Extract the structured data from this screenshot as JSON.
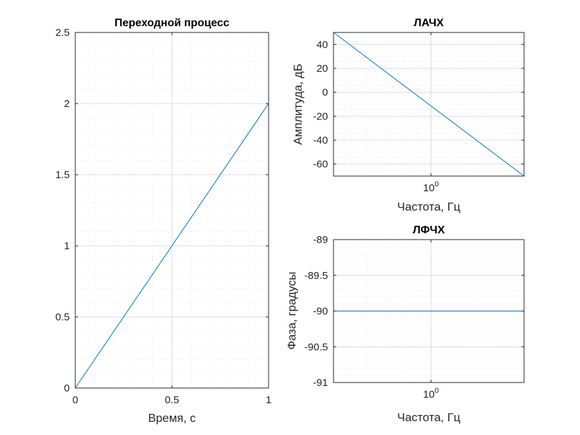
{
  "chart_data": [
    {
      "id": "step",
      "type": "line",
      "title": "Переходной процесс",
      "xlabel": "Время, с",
      "ylabel": "",
      "xlim": [
        0,
        1
      ],
      "ylim": [
        0,
        2.5
      ],
      "xscale": "linear",
      "xticks": [
        0,
        0.5,
        1
      ],
      "xtick_labels": [
        "0",
        "0.5",
        "1"
      ],
      "yticks": [
        0,
        0.5,
        1,
        1.5,
        2,
        2.5
      ],
      "ytick_labels": [
        "0",
        "0.5",
        "1",
        "1.5",
        "2",
        "2.5"
      ],
      "grid": true,
      "minor_grid": true,
      "series": [
        {
          "x": [
            0,
            1
          ],
          "y": [
            0,
            2
          ],
          "color": "#0072bd"
        }
      ]
    },
    {
      "id": "amplitude",
      "type": "line",
      "title": "ЛАЧХ",
      "xlabel": "Частота, Гц",
      "ylabel": "Амплитуда, дБ",
      "xlim": [
        0.46,
        2.1
      ],
      "ylim": [
        -70,
        50
      ],
      "xscale": "log",
      "xticks": [
        1
      ],
      "xtick_labels": [
        {
          "base": "10",
          "exp": "0"
        }
      ],
      "yticks": [
        -60,
        -40,
        -20,
        0,
        20,
        40
      ],
      "ytick_labels": [
        "-60",
        "-40",
        "-20",
        "0",
        "20",
        "40"
      ],
      "grid": true,
      "minor_grid": true,
      "series": [
        {
          "x": [
            0.46,
            2.1
          ],
          "y": [
            50,
            -70
          ],
          "color": "#0072bd"
        }
      ]
    },
    {
      "id": "phase",
      "type": "line",
      "title": "ЛФЧХ",
      "xlabel": "Частота, Гц",
      "ylabel": "Фаза, градусы",
      "xlim": [
        0.46,
        2.1
      ],
      "ylim": [
        -91,
        -89
      ],
      "xscale": "log",
      "xticks": [
        1
      ],
      "xtick_labels": [
        {
          "base": "10",
          "exp": "0"
        }
      ],
      "yticks": [
        -91,
        -90.5,
        -90,
        -89.5,
        -89
      ],
      "ytick_labels": [
        "-91",
        "-90.5",
        "-90",
        "-89.5",
        "-89"
      ],
      "grid": true,
      "minor_grid": true,
      "series": [
        {
          "x": [
            0.46,
            2.1
          ],
          "y": [
            -90,
            -90
          ],
          "color": "#0072bd"
        }
      ]
    }
  ]
}
